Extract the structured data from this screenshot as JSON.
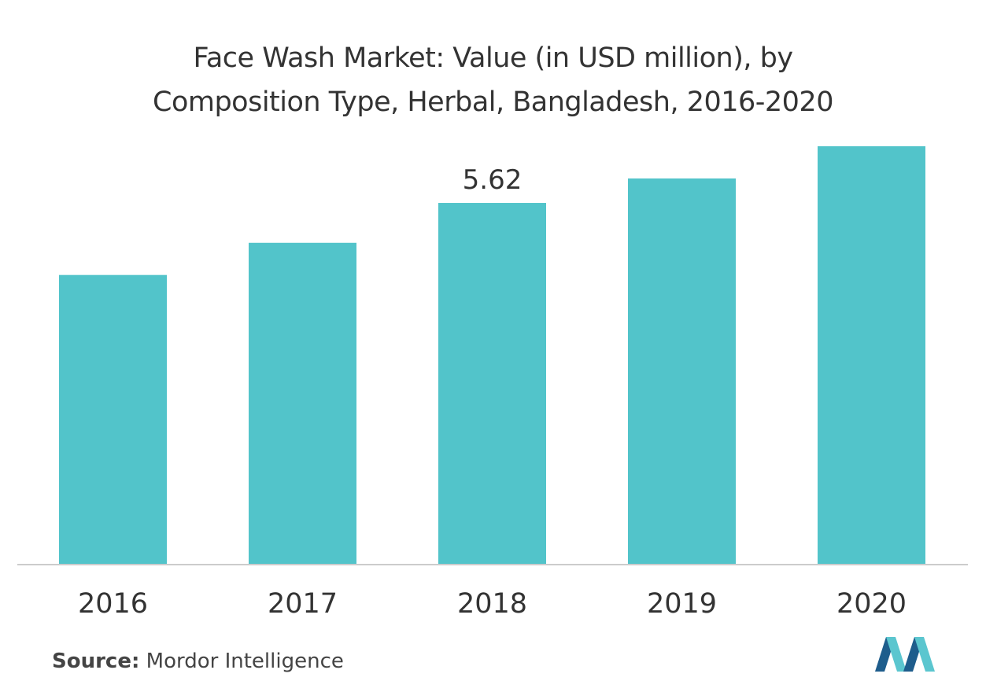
{
  "title_line1": "Face Wash Market: Value (in USD million), by",
  "title_line2": "Composition Type, Herbal, Bangladesh, 2016-2020",
  "source_label": "Source:",
  "source_text": "Mordor Intelligence",
  "colors": {
    "bar": "#52C4CA",
    "axis": "#cccccc",
    "text": "#333333",
    "logo_dark": "#1e5d8c",
    "logo_light": "#5bc6cf"
  },
  "chart_data": {
    "type": "bar",
    "title": "Face Wash Market: Value (in USD million), by Composition Type, Herbal, Bangladesh, 2016-2020",
    "categories": [
      "2016",
      "2017",
      "2018",
      "2019",
      "2020"
    ],
    "values": [
      4.5,
      5.0,
      5.62,
      6.0,
      6.5
    ],
    "data_labels": [
      "",
      "",
      "5.62",
      "",
      ""
    ],
    "xlabel": "",
    "ylabel": "",
    "ylim": [
      0,
      7.0
    ],
    "grid": false,
    "legend": "none"
  }
}
